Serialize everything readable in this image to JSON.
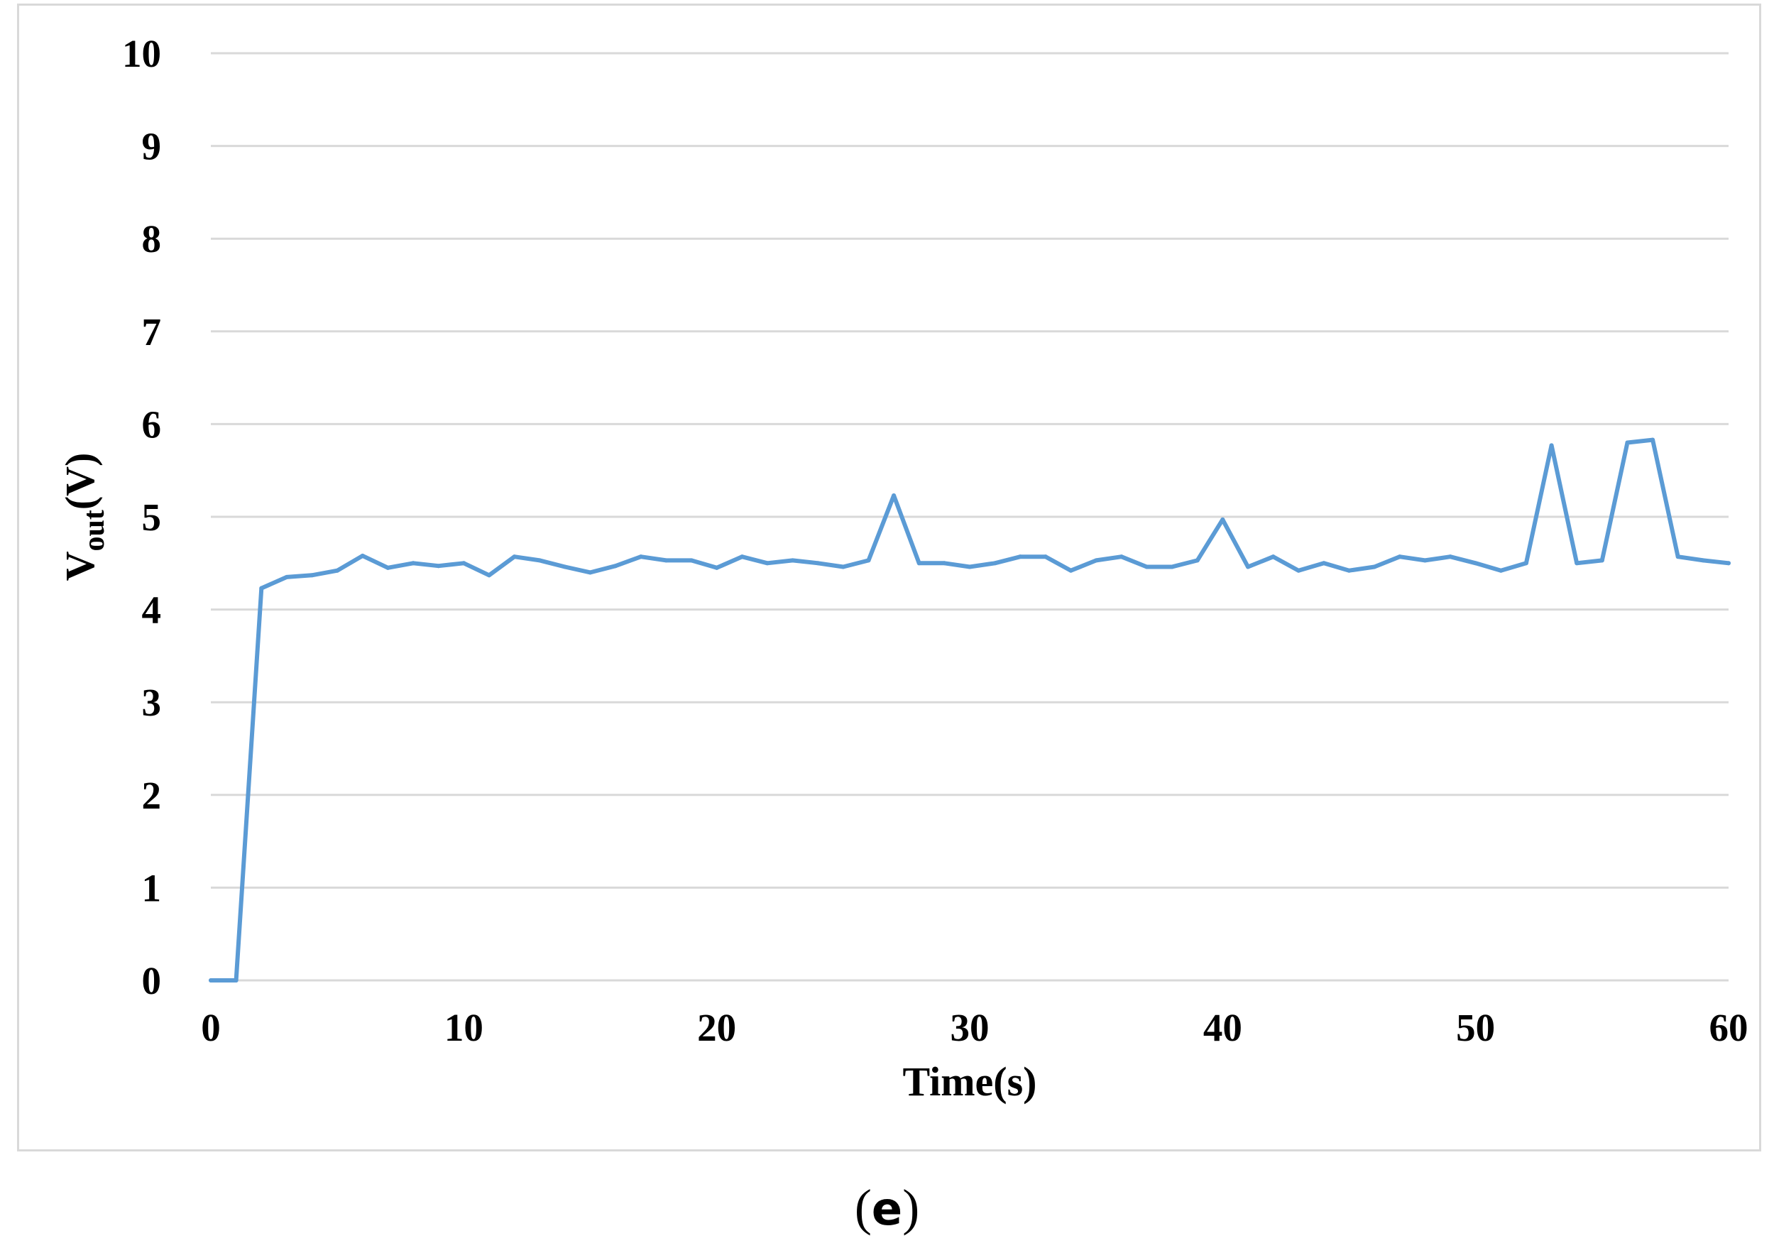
{
  "chart_data": {
    "type": "line",
    "xlabel": "Time(s)",
    "ylabel_main": "V",
    "ylabel_sub": "out",
    "ylabel_tail": "(V)",
    "xlim": [
      0,
      60
    ],
    "ylim": [
      0,
      10
    ],
    "xticks": [
      "0",
      "10",
      "20",
      "30",
      "40",
      "50",
      "60"
    ],
    "yticks": [
      "0",
      "1",
      "2",
      "3",
      "4",
      "5",
      "6",
      "7",
      "8",
      "9",
      "10"
    ],
    "grid": "horizontal",
    "line_color": "#5b9bd5",
    "series": [
      {
        "x": [
          0,
          1,
          2,
          3,
          4,
          5,
          6,
          7,
          8,
          9,
          10,
          11,
          12,
          13,
          14,
          15,
          16,
          17,
          18,
          19,
          20,
          21,
          22,
          23,
          24,
          25,
          26,
          27,
          28,
          29,
          30,
          31,
          32,
          33,
          34,
          35,
          36,
          37,
          38,
          39,
          40,
          41,
          42,
          43,
          44,
          45,
          46,
          47,
          48,
          49,
          50,
          51,
          52,
          53,
          54,
          55,
          56,
          57,
          58,
          59,
          60
        ],
        "values": [
          0,
          0,
          4.23,
          4.35,
          4.37,
          4.42,
          4.58,
          4.45,
          4.5,
          4.47,
          4.5,
          4.37,
          4.57,
          4.53,
          4.46,
          4.4,
          4.47,
          4.57,
          4.53,
          4.53,
          4.45,
          4.57,
          4.5,
          4.53,
          4.5,
          4.46,
          4.53,
          5.23,
          4.5,
          4.5,
          4.46,
          4.5,
          4.57,
          4.57,
          4.42,
          4.53,
          4.57,
          4.46,
          4.46,
          4.53,
          4.97,
          4.46,
          4.57,
          4.42,
          4.5,
          4.42,
          4.46,
          4.57,
          4.53,
          4.57,
          4.5,
          4.42,
          4.5,
          5.77,
          4.5,
          4.53,
          5.8,
          5.83,
          4.57,
          4.53,
          4.5
        ]
      }
    ]
  },
  "panel_label": {
    "open": "(",
    "letter": "e",
    "close": ")"
  }
}
